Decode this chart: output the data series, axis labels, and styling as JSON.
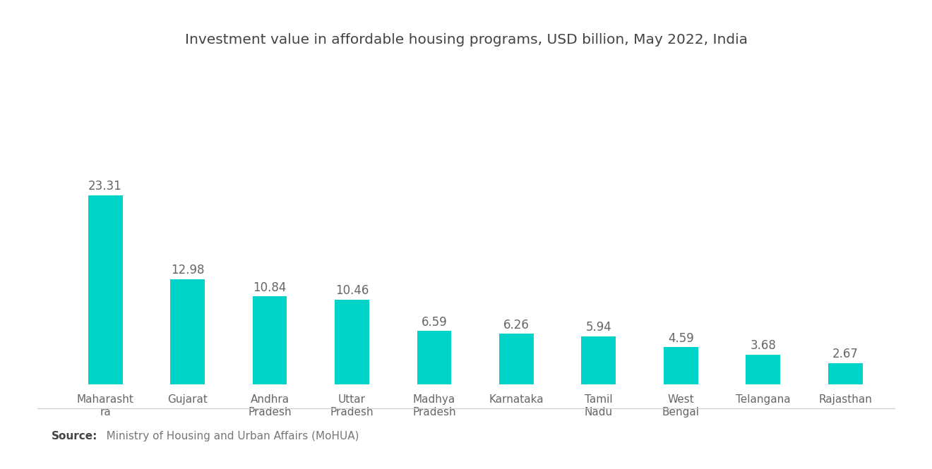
{
  "title": "Investment value in affordable housing programs, USD billion, May 2022, India",
  "categories": [
    "Maharasht\nra",
    "Gujarat",
    "Andhra\nPradesh",
    "Uttar\nPradesh",
    "Madhya\nPradesh",
    "Karnataka",
    "Tamil\nNadu",
    "West\nBengal",
    "Telangana",
    "Rajasthan"
  ],
  "values": [
    23.31,
    12.98,
    10.84,
    10.46,
    6.59,
    6.26,
    5.94,
    4.59,
    3.68,
    2.67
  ],
  "bar_color": "#00D4C8",
  "value_color": "#666666",
  "title_color": "#444444",
  "axis_label_color": "#666666",
  "background_color": "#ffffff",
  "source_bold": "Source:",
  "source_text": "   Ministry of Housing and Urban Affairs (MoHUA)",
  "title_fontsize": 14.5,
  "value_fontsize": 12,
  "label_fontsize": 11,
  "source_fontsize": 11,
  "ylim": [
    0,
    30
  ],
  "bar_width": 0.42
}
